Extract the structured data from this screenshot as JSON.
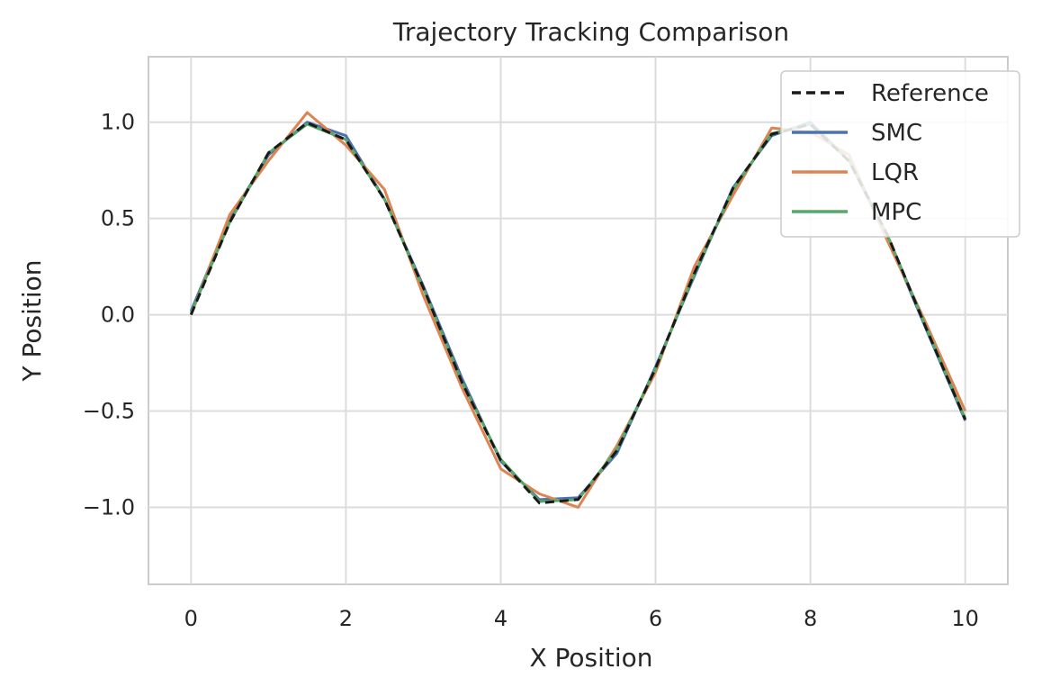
{
  "chart_data": {
    "type": "line",
    "title": "Trajectory Tracking Comparison",
    "xlabel": "X Position",
    "ylabel": "Y Position",
    "xlim": [
      -0.55,
      10.55
    ],
    "ylim": [
      -1.4,
      1.34
    ],
    "x_ticks": [
      0,
      2,
      4,
      6,
      8,
      10
    ],
    "x_tick_labels": [
      "0",
      "2",
      "4",
      "6",
      "8",
      "10"
    ],
    "y_ticks": [
      1.0,
      0.5,
      0.0,
      -0.5,
      -1.0
    ],
    "y_tick_labels": [
      "1.0",
      "0.5",
      "0.0",
      "−0.5",
      "−1.0"
    ],
    "grid": true,
    "legend_position": "top-right",
    "series": [
      {
        "name": "Reference",
        "color": "#1a1a1a",
        "dashed": true,
        "x": [
          0,
          0.5,
          1,
          1.5,
          2,
          2.5,
          3,
          3.5,
          4,
          4.5,
          5,
          5.5,
          6,
          6.5,
          7,
          7.5,
          8,
          8.5,
          9,
          9.5,
          10
        ],
        "y": [
          0,
          0.479,
          0.841,
          0.997,
          0.909,
          0.598,
          0.141,
          -0.351,
          -0.757,
          -0.978,
          -0.959,
          -0.706,
          -0.279,
          0.215,
          0.657,
          0.938,
          0.989,
          0.798,
          0.412,
          -0.075,
          -0.544
        ]
      },
      {
        "name": "SMC",
        "color": "#4c72b0",
        "x": [
          0,
          0.5,
          1,
          1.5,
          2,
          2.5,
          3,
          3.5,
          4,
          4.5,
          5,
          5.5,
          6,
          6.5,
          7,
          7.5,
          8,
          8.5,
          9,
          9.5,
          10
        ],
        "y": [
          0.02,
          0.5,
          0.83,
          1.0,
          0.93,
          0.6,
          0.15,
          -0.33,
          -0.76,
          -0.96,
          -0.95,
          -0.72,
          -0.27,
          0.2,
          0.66,
          0.93,
          1.0,
          0.8,
          0.4,
          -0.08,
          -0.55
        ]
      },
      {
        "name": "LQR",
        "color": "#dd8452",
        "x": [
          0,
          0.5,
          1,
          1.5,
          2,
          2.5,
          3,
          3.5,
          4,
          4.5,
          5,
          5.5,
          6,
          6.5,
          7,
          7.5,
          8,
          8.5,
          9,
          9.5,
          10
        ],
        "y": [
          0.0,
          0.52,
          0.8,
          1.05,
          0.88,
          0.65,
          0.1,
          -0.38,
          -0.8,
          -0.93,
          -1.0,
          -0.68,
          -0.3,
          0.25,
          0.62,
          0.97,
          0.95,
          0.83,
          0.38,
          -0.05,
          -0.5
        ]
      },
      {
        "name": "MPC",
        "color": "#55a868",
        "x": [
          0,
          0.5,
          1,
          1.5,
          2,
          2.5,
          3,
          3.5,
          4,
          4.5,
          5,
          5.5,
          6,
          6.5,
          7,
          7.5,
          8,
          8.5,
          9,
          9.5,
          10
        ],
        "y": [
          0.01,
          0.48,
          0.84,
          0.99,
          0.91,
          0.6,
          0.14,
          -0.35,
          -0.75,
          -0.97,
          -0.96,
          -0.7,
          -0.28,
          0.21,
          0.65,
          0.94,
          0.99,
          0.8,
          0.41,
          -0.07,
          -0.54
        ]
      }
    ]
  }
}
